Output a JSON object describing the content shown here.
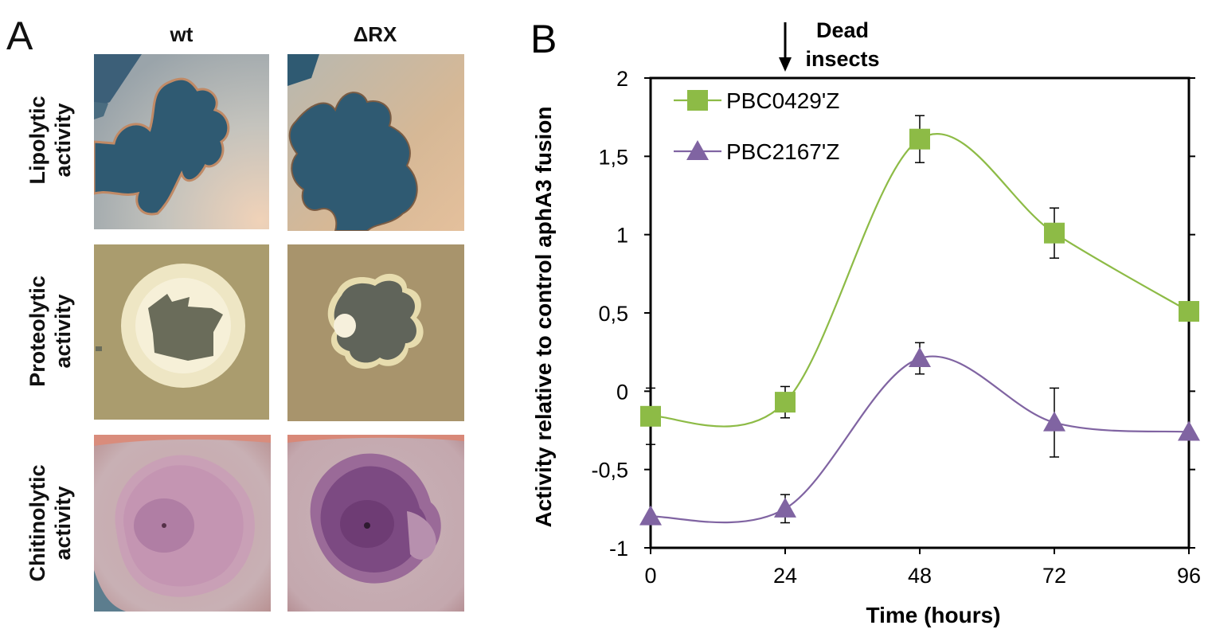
{
  "panel_a": {
    "letter": "A",
    "columns": [
      "wt",
      "ΔRX"
    ],
    "rows": [
      {
        "line1": "Lipolytic",
        "line2": "activity"
      },
      {
        "line1": "Proteolytic",
        "line2": "activity"
      },
      {
        "line1": "Chitinolytic",
        "line2": "activity"
      }
    ]
  },
  "panel_b": {
    "letter": "B",
    "annotation": {
      "line1": "Dead",
      "line2": "insects",
      "at_x": 24
    }
  },
  "chart_data": {
    "type": "line",
    "xlabel": "Time (hours)",
    "ylabel": "Activity relative to control aphA3 fusion",
    "x": [
      0,
      24,
      48,
      72,
      96
    ],
    "x_tick_labels": [
      "0",
      "24",
      "48",
      "72",
      "96"
    ],
    "xlim": [
      0,
      96
    ],
    "ylim": [
      -1,
      2
    ],
    "y_ticks": [
      -1,
      -0.5,
      0,
      0.5,
      1,
      1.5,
      2
    ],
    "y_tick_labels": [
      "-1",
      "-0,5",
      "0",
      "0,5",
      "1",
      "1,5",
      "2"
    ],
    "grid": false,
    "legend_position": "top-left",
    "smooth": true,
    "series": [
      {
        "name": "PBC0429'Z",
        "color": "#8dbb46",
        "marker": "square",
        "values": [
          -0.16,
          -0.07,
          1.61,
          1.01,
          0.51
        ],
        "errors": [
          0.18,
          0.1,
          0.15,
          0.16,
          0.0
        ]
      },
      {
        "name": "PBC2167'Z",
        "color": "#8064a2",
        "marker": "triangle",
        "values": [
          -0.8,
          -0.75,
          0.21,
          -0.2,
          -0.26
        ],
        "errors": [
          0.0,
          0.09,
          0.1,
          0.22,
          0.0
        ]
      }
    ]
  }
}
